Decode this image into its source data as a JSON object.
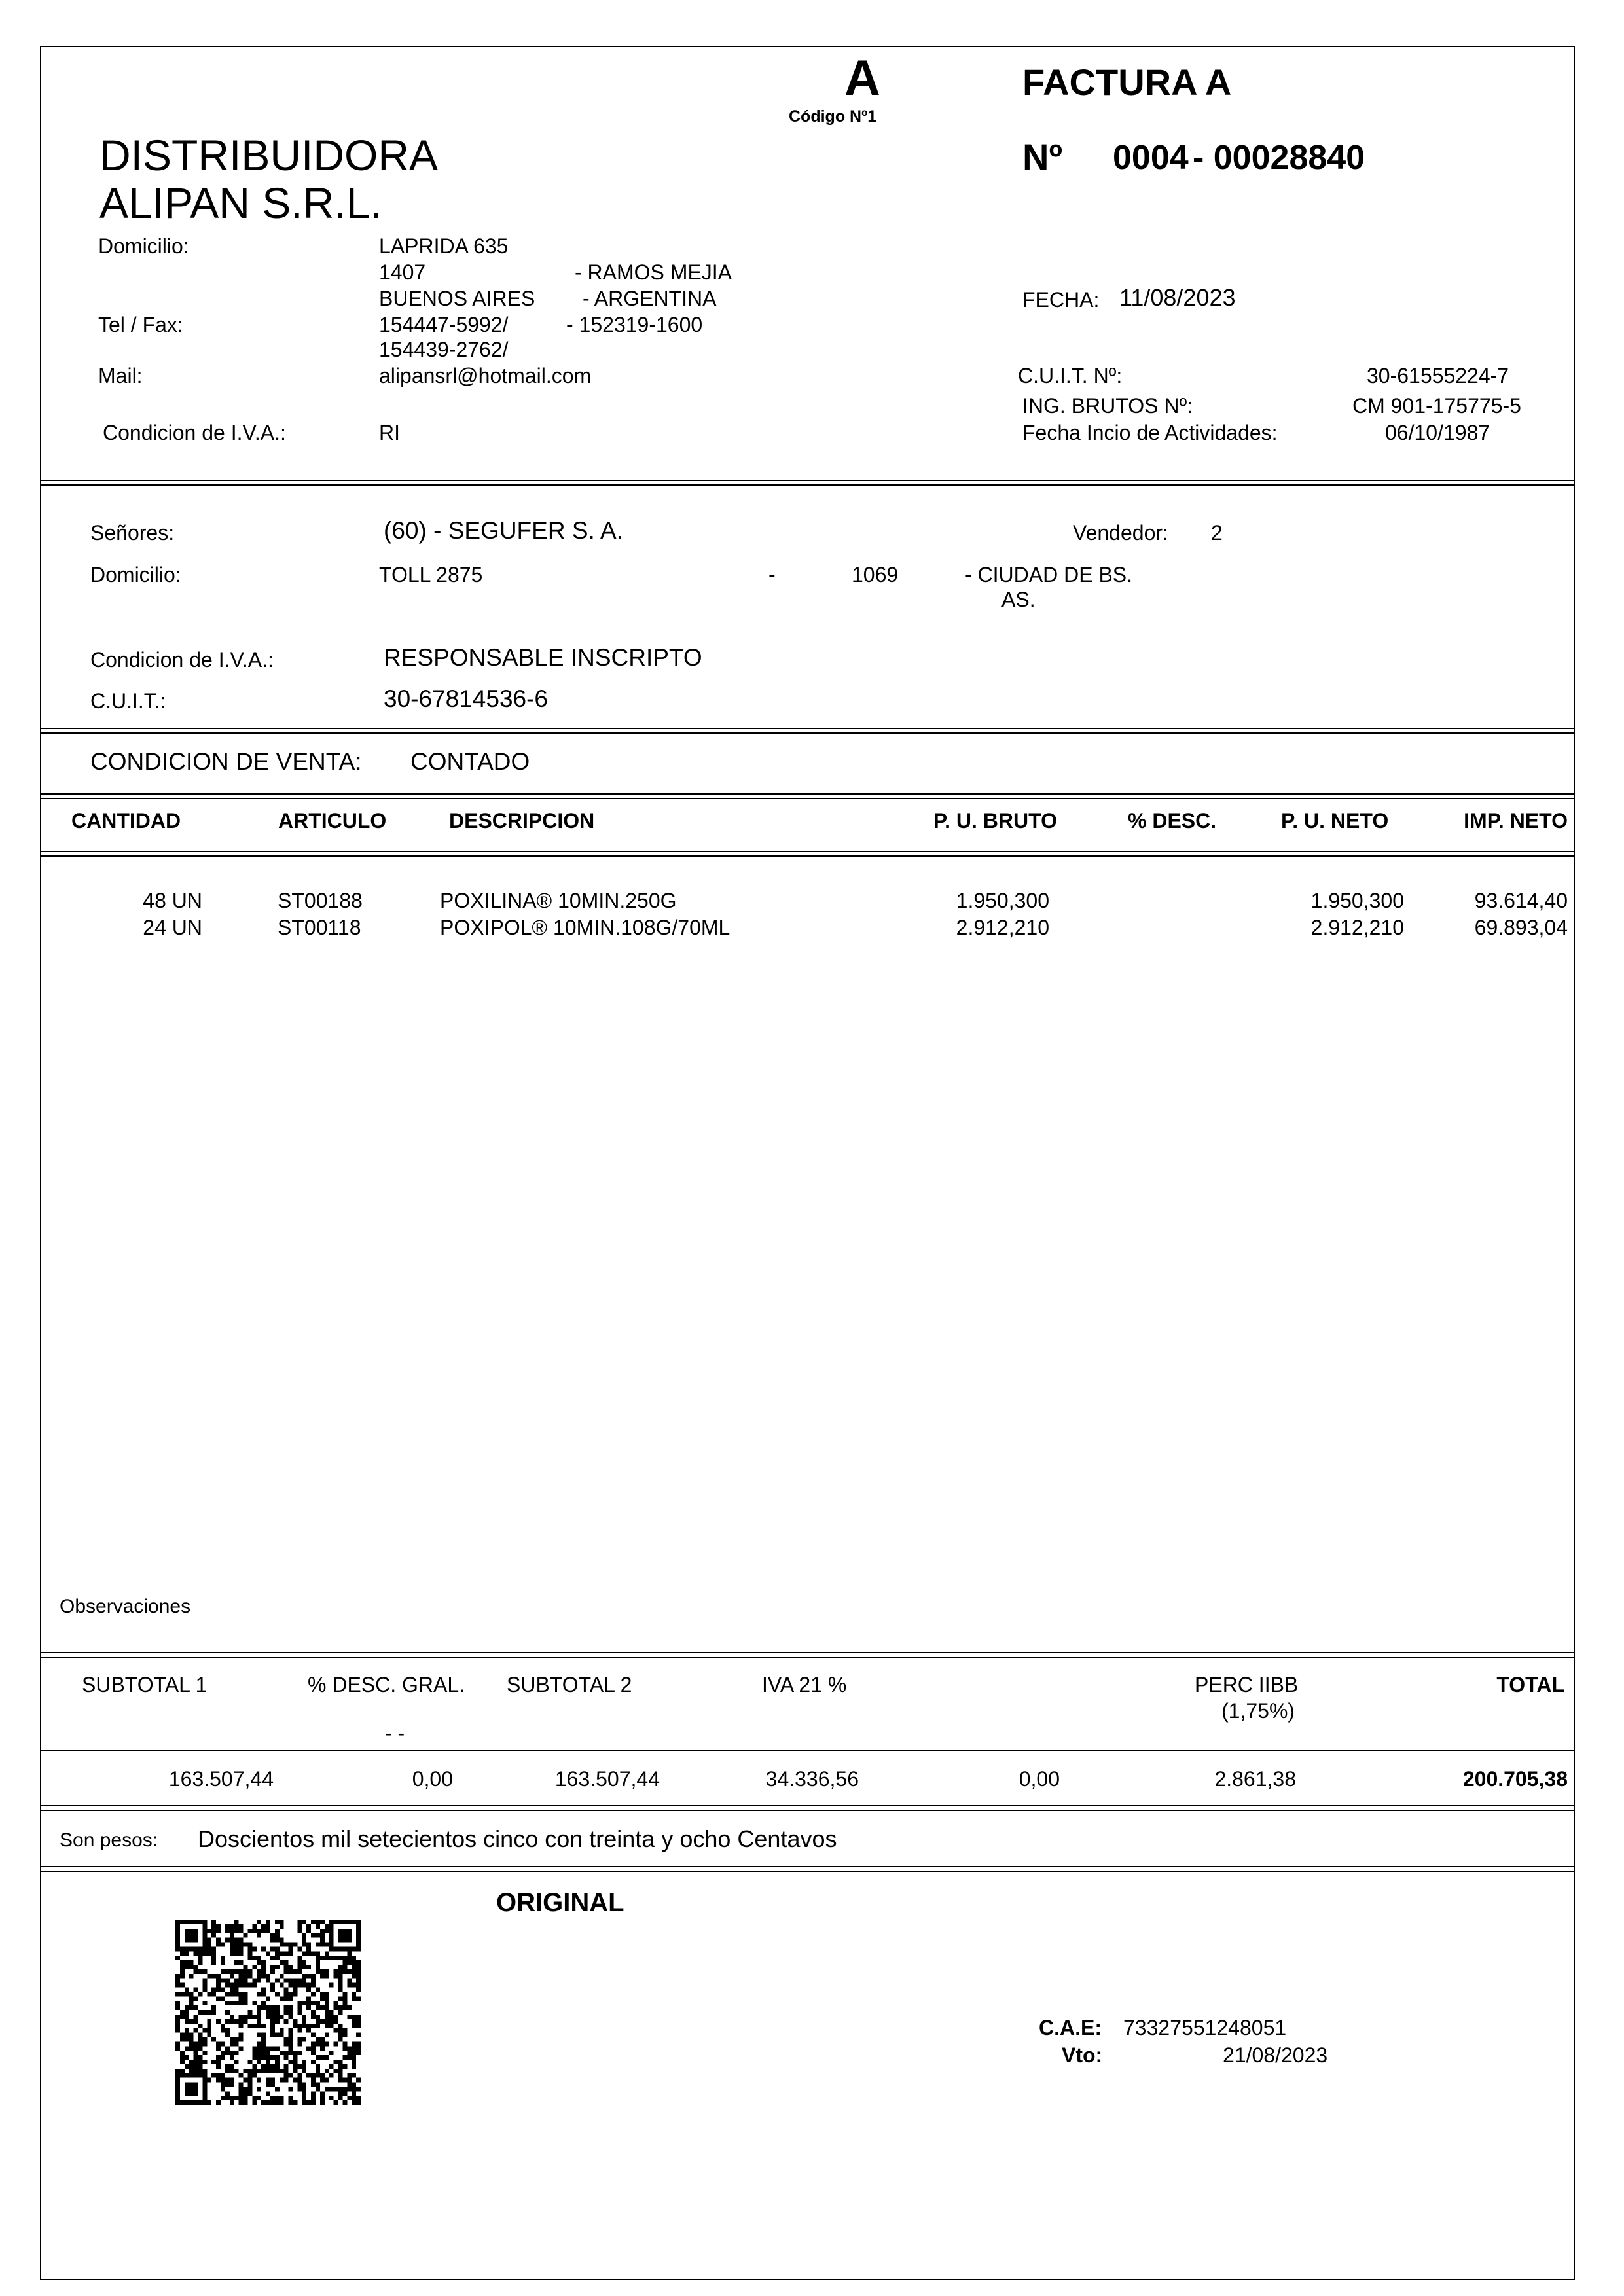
{
  "header": {
    "letter": "A",
    "codigo": "Código Nº1",
    "doc_type": "FACTURA A",
    "company_line1": "DISTRIBUIDORA",
    "company_line2": "ALIPAN S.R.L.",
    "number_label": "Nº",
    "point_of_sale": "0004",
    "number": "- 00028840",
    "domicilio_label": "Domicilio:",
    "address_line1": "LAPRIDA 635",
    "postal_code": "1407",
    "city": "- RAMOS MEJIA",
    "province": "BUENOS AIRES",
    "country": "- ARGENTINA",
    "tel_label": "Tel / Fax:",
    "tel1": "154447-5992/",
    "tel2": "- 152319-1600",
    "tel3": "154439-2762/",
    "mail_label": "Mail:",
    "mail": "alipansrl@hotmail.com",
    "iva_label": "Condicion de I.V.A.:",
    "iva": "RI",
    "fecha_label": "FECHA:",
    "fecha": "11/08/2023",
    "cuit_label": "C.U.I.T. Nº:",
    "cuit": "30-61555224-7",
    "iibb_label": "ING. BRUTOS Nº:",
    "iibb": "CM 901-175775-5",
    "inicio_label": "Fecha Incio de Actividades:",
    "inicio": "06/10/1987"
  },
  "client": {
    "senores_label": "Señores:",
    "name": "(60) - SEGUFER S. A.",
    "vendedor_label": "Vendedor:",
    "vendedor": "2",
    "domicilio_label": "Domicilio:",
    "address": "TOLL 2875",
    "dash": "-",
    "postal_code": "1069",
    "city_line1": "- CIUDAD DE BS.",
    "city_line2": "AS.",
    "iva_label": "Condicion de I.V.A.:",
    "iva": "RESPONSABLE INSCRIPTO",
    "cuit_label": "C.U.I.T.:",
    "cuit": "30-67814536-6"
  },
  "sale": {
    "label": "CONDICION DE VENTA:",
    "value": "CONTADO"
  },
  "table": {
    "columns": [
      "CANTIDAD",
      "ARTICULO",
      "DESCRIPCION",
      "P. U. BRUTO",
      "% DESC.",
      "P. U. NETO",
      "IMP. NETO"
    ],
    "rows": [
      {
        "cantidad": "48 UN",
        "articulo": "ST00188",
        "descripcion": "POXILINA® 10MIN.250G",
        "pu_bruto": "1.950,300",
        "desc": "",
        "pu_neto": "1.950,300",
        "imp_neto": "93.614,40"
      },
      {
        "cantidad": "24 UN",
        "articulo": "ST00118",
        "descripcion": "POXIPOL® 10MIN.108G/70ML",
        "pu_bruto": "2.912,210",
        "desc": "",
        "pu_neto": "2.912,210",
        "imp_neto": "69.893,04"
      }
    ]
  },
  "observaciones_label": "Observaciones",
  "totals": {
    "subtotal1_label": "SUBTOTAL 1",
    "desc_gral_label": "% DESC. GRAL.",
    "desc_gral_dashes": "- -",
    "subtotal2_label": "SUBTOTAL 2",
    "iva_label": "IVA 21 %",
    "perc_label": "PERC IIBB",
    "perc_rate": "(1,75%)",
    "total_label": "TOTAL",
    "subtotal1": "163.507,44",
    "desc_gral": "0,00",
    "subtotal2": "163.507,44",
    "iva": "34.336,56",
    "other": "0,00",
    "perc": "2.861,38",
    "total": "200.705,38"
  },
  "son_pesos": {
    "label": "Son pesos:",
    "text": "Doscientos mil setecientos cinco con treinta y ocho Centavos"
  },
  "footer": {
    "copy_label": "ORIGINAL",
    "cae_label": "C.A.E:",
    "cae": "73327551248051",
    "vto_label": "Vto:",
    "vto": "21/08/2023"
  }
}
